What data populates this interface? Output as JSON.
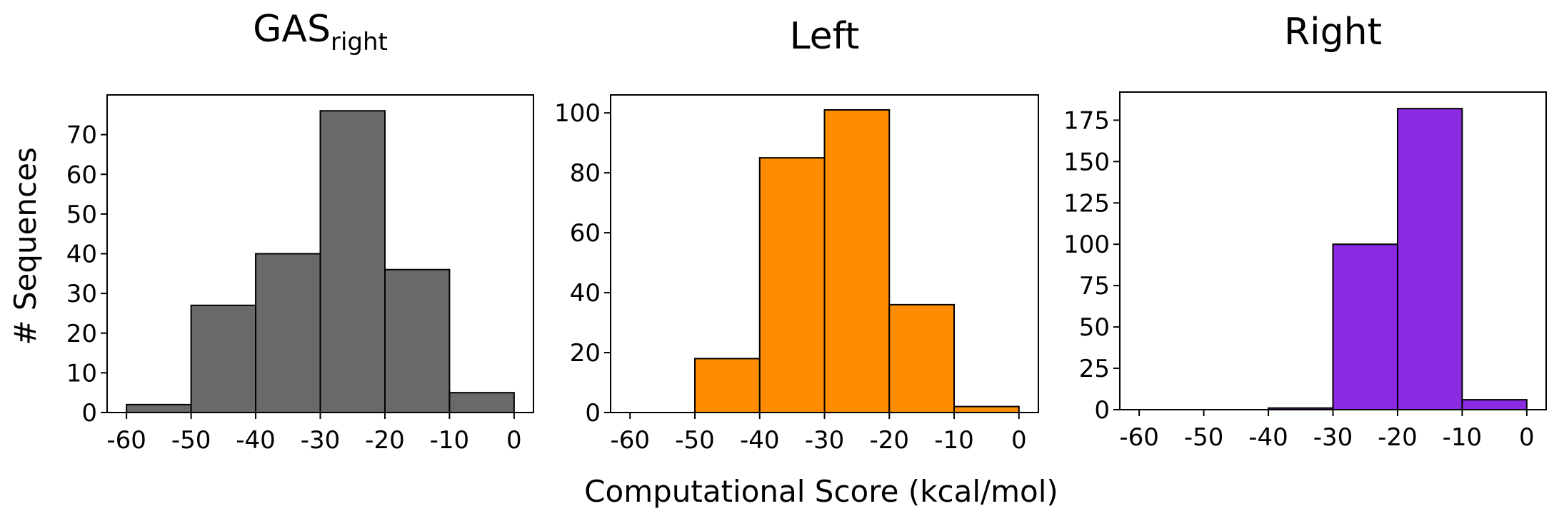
{
  "figure": {
    "ylabel": "# Sequences",
    "xlabel": "Computational Score (kcal/mol)"
  },
  "chart_data": [
    {
      "type": "bar",
      "title": "GAS",
      "title_subscript": "right",
      "color": "#696969",
      "bin_edges": [
        -60,
        -50,
        -40,
        -30,
        -20,
        -10,
        0
      ],
      "values": [
        2,
        27,
        40,
        76,
        36,
        5
      ],
      "xlim": [
        -63,
        3
      ],
      "ylim": [
        0,
        80
      ],
      "xticks": [
        -60,
        -50,
        -40,
        -30,
        -20,
        -10,
        0
      ],
      "yticks": [
        0,
        10,
        20,
        30,
        40,
        50,
        60,
        70
      ]
    },
    {
      "type": "bar",
      "title": "Left",
      "color": "#ff8c00",
      "bin_edges": [
        -60,
        -50,
        -40,
        -30,
        -20,
        -10,
        0
      ],
      "values": [
        0,
        18,
        85,
        101,
        36,
        2
      ],
      "xlim": [
        -63,
        3
      ],
      "ylim": [
        0,
        106
      ],
      "xticks": [
        -60,
        -50,
        -40,
        -30,
        -20,
        -10,
        0
      ],
      "yticks": [
        0,
        20,
        40,
        60,
        80,
        100
      ]
    },
    {
      "type": "bar",
      "title": "Right",
      "color": "#8a2be2",
      "bin_edges": [
        -60,
        -50,
        -40,
        -30,
        -20,
        -10,
        0
      ],
      "values": [
        0,
        0,
        1,
        100,
        182,
        6
      ],
      "xlim": [
        -63,
        3
      ],
      "ylim": [
        0,
        192
      ],
      "xticks": [
        -60,
        -50,
        -40,
        -30,
        -20,
        -10,
        0
      ],
      "yticks": [
        0,
        25,
        50,
        75,
        100,
        125,
        150,
        175
      ]
    }
  ]
}
